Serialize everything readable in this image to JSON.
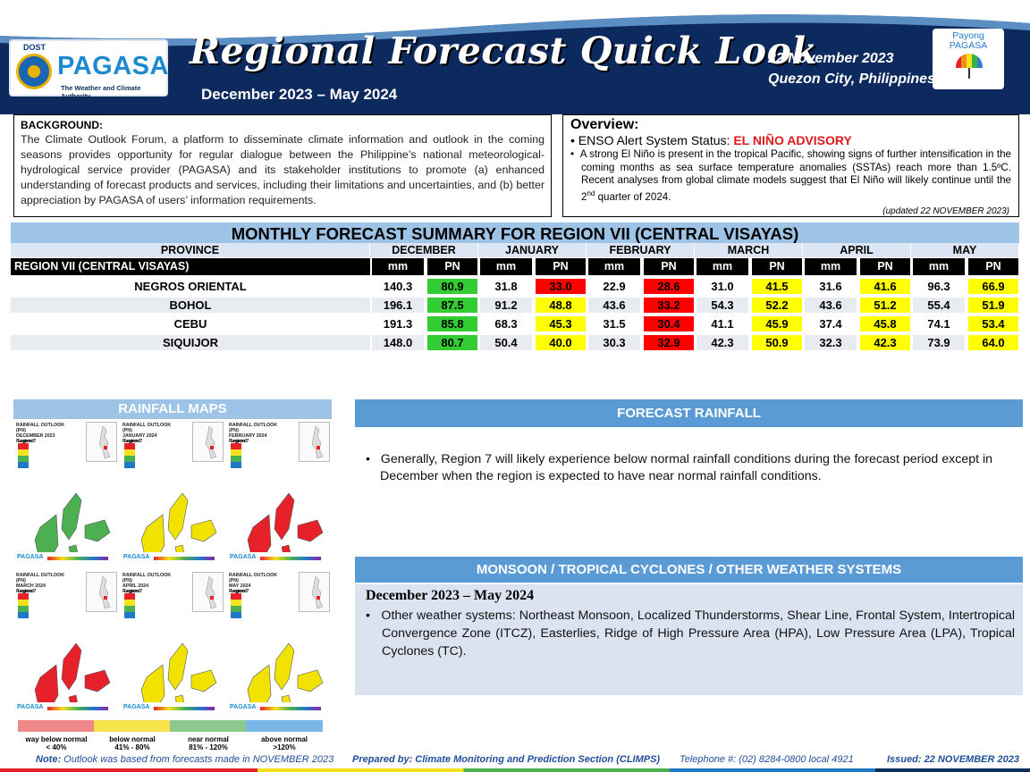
{
  "header": {
    "dost": "DOST",
    "agency": "PAGASA",
    "tagline": "The Weather and Climate Authority",
    "title": "Regional Forecast Quick Look",
    "period": "December 2023 – May  2024",
    "date": "22 November 2023",
    "location": "Quezon City, Philippines",
    "payong_line1": "Payong",
    "payong_line2": "PAGASA"
  },
  "background": {
    "heading": "BACKGROUND:",
    "text": "The Climate Outlook Forum, a platform to disseminate climate information and outlook in the coming seasons provides opportunity for regular dialogue between the Philippine’s national meteorological-hydrological service provider (PAGASA) and its stakeholder institutions to promote (a) enhanced understanding of forecast products and services, including their limitations and uncertainties, and (b) better appreciation by PAGASA of users’ information requirements."
  },
  "overview": {
    "heading": "Overview:",
    "enso_label": "ENSO Alert  System Status: ",
    "enso_status": "EL NIÑO ADVISORY",
    "bullet_text": "A strong El Niño is present in the tropical Pacific, showing signs of further intensification in the coming months as sea surface temperature anomalies (SSTAs) reach more than 1.5ºC. Recent analyses from global climate models suggest that El Niño will likely continue  until the 2",
    "superscript": "nd",
    "bullet_tail": " quarter of 2024.",
    "updated": "(updated 22 NOVEMBER  2023)"
  },
  "table": {
    "title": "MONTHLY FORECAST SUMMARY FOR REGION VII (CENTRAL VISAYAS)",
    "province_header": "PROVINCE",
    "region_label": "REGION VII (CENTRAL VISAYAS)",
    "unit_mm": "mm",
    "unit_pn": "PN",
    "months": [
      "DECEMBER",
      "JANUARY",
      "FEBRUARY",
      "MARCH",
      "APRIL",
      "MAY"
    ],
    "rows": [
      {
        "province": "NEGROS ORIENTAL",
        "mm": [
          "140.3",
          "31.8",
          "22.9",
          "31.0",
          "31.6",
          "96.3"
        ],
        "pn": [
          "80.9",
          "33.0",
          "28.6",
          "41.5",
          "41.6",
          "66.9"
        ]
      },
      {
        "province": "BOHOL",
        "mm": [
          "196.1",
          "91.2",
          "43.6",
          "54.3",
          "43.6",
          "55.4"
        ],
        "pn": [
          "87.5",
          "48.8",
          "33.2",
          "52.2",
          "51.2",
          "51.9"
        ]
      },
      {
        "province": "CEBU",
        "mm": [
          "191.3",
          "68.3",
          "31.5",
          "41.1",
          "37.4",
          "74.1"
        ],
        "pn": [
          "85.8",
          "45.3",
          "30.4",
          "45.9",
          "45.8",
          "53.4"
        ]
      },
      {
        "province": "SIQUIJOR",
        "mm": [
          "148.0",
          "50.4",
          "30.3",
          "42.3",
          "32.3",
          "73.9"
        ],
        "pn": [
          "80.7",
          "40.0",
          "32.9",
          "50.9",
          "42.3",
          "64.0"
        ]
      }
    ],
    "colors": {
      "green": "#33cc33",
      "red": "#ff0000",
      "yellow": "#ffff00"
    }
  },
  "rainfall_maps": {
    "heading": "RAINFALL MAPS",
    "maps": [
      {
        "title": "RAINFALL OUTLOOK (PN)",
        "month": "DECEMBER 2023",
        "region": "Region 7",
        "color": "#4caf50"
      },
      {
        "title": "RAINFALL OUTLOOK (PN)",
        "month": "JANUARY 2024",
        "region": "Region 7",
        "color": "#f2e200"
      },
      {
        "title": "RAINFALL OUTLOOK (PN)",
        "month": "FEBRUARY 2024",
        "region": "Region 7",
        "color": "#e6212a"
      },
      {
        "title": "RAINFALL OUTLOOK (PN)",
        "month": "MARCH 2024",
        "region": "Region 7",
        "color": "#e6212a"
      },
      {
        "title": "RAINFALL OUTLOOK (PN)",
        "month": "APRIL 2024",
        "region": "Region 7",
        "color": "#f2e200"
      },
      {
        "title": "RAINFALL OUTLOOK (PN)",
        "month": "MAY 2024",
        "region": "Region 7",
        "color": "#f2e200"
      }
    ],
    "map_legend_label": "Legend",
    "map_footer": "PAGASA",
    "legend": [
      {
        "label": "way below normal",
        "range": "< 40%",
        "color": "#f08a8a"
      },
      {
        "label": "below normal",
        "range": "41% - 80%",
        "color": "#f6e24a"
      },
      {
        "label": "near normal",
        "range": "81% - 120%",
        "color": "#8dc98f"
      },
      {
        "label": "above normal",
        "range": ">120%",
        "color": "#7ab7e6"
      }
    ]
  },
  "forecast_rainfall": {
    "heading": "FORECAST RAINFALL",
    "text": "Generally, Region 7 will likely experience below normal rainfall conditions during the forecast period except in December when the region is expected to have near normal rainfall conditions."
  },
  "monsoon": {
    "heading": "MONSOON  / TROPICAL CYCLONES / OTHER WEATHER SYSTEMS",
    "period": "December 2023 – May  2024",
    "text": "Other weather systems: Northeast Monsoon, Localized Thunderstorms, Shear Line, Frontal System, Intertropical Convergence Zone (ITCZ), Easterlies, Ridge of High Pressure Area (HPA), Low Pressure Area (LPA), Tropical Cyclones (TC)."
  },
  "footer": {
    "note_label": "Note:",
    "note": " Outlook was based from forecasts made in NOVEMBER  2023",
    "prepared": "Prepared by: Climate Monitoring and Prediction Section (CLIMPS)",
    "telephone": "Telephone #: (02) 8284-0800 local 4921",
    "issued": "Issued: 22 NOVEMBER 2023"
  }
}
